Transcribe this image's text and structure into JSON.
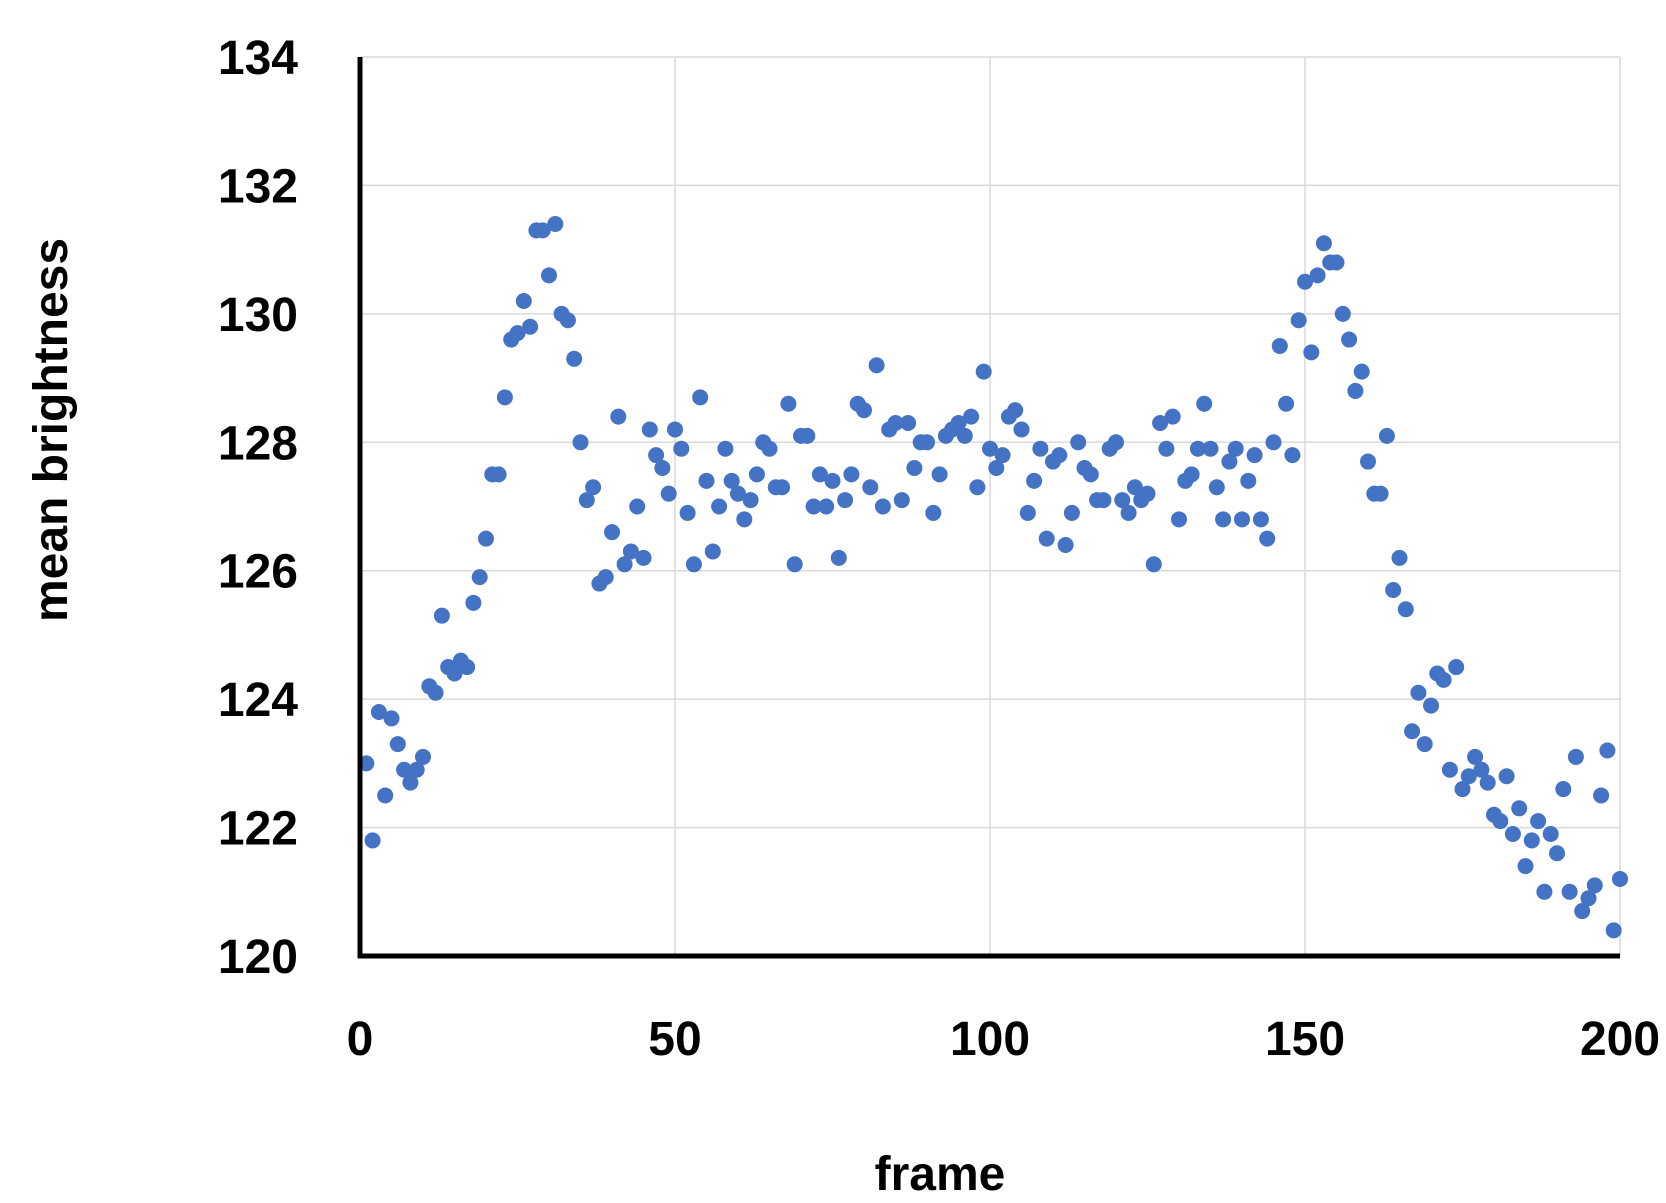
{
  "chart_data": {
    "type": "scatter",
    "title": "",
    "xlabel": "frame",
    "ylabel": "mean brightness",
    "xlim": [
      0,
      200
    ],
    "ylim": [
      120,
      134
    ],
    "x_ticks": [
      0,
      50,
      100,
      150,
      200
    ],
    "y_ticks": [
      120,
      122,
      124,
      126,
      128,
      130,
      132,
      134
    ],
    "grid": true,
    "legend": "none",
    "marker_color": "#4472C4",
    "series": [
      {
        "points": [
          [
            1,
            123.0
          ],
          [
            2,
            121.8
          ],
          [
            3,
            123.8
          ],
          [
            4,
            122.5
          ],
          [
            5,
            123.7
          ],
          [
            6,
            123.3
          ],
          [
            7,
            122.9
          ],
          [
            8,
            122.7
          ],
          [
            9,
            122.9
          ],
          [
            10,
            123.1
          ],
          [
            11,
            124.2
          ],
          [
            12,
            124.1
          ],
          [
            13,
            125.3
          ],
          [
            14,
            124.5
          ],
          [
            15,
            124.4
          ],
          [
            16,
            124.6
          ],
          [
            17,
            124.5
          ],
          [
            18,
            125.5
          ],
          [
            19,
            125.9
          ],
          [
            20,
            126.5
          ],
          [
            21,
            127.5
          ],
          [
            22,
            127.5
          ],
          [
            23,
            128.7
          ],
          [
            24,
            129.6
          ],
          [
            25,
            129.7
          ],
          [
            26,
            130.2
          ],
          [
            27,
            129.8
          ],
          [
            28,
            131.3
          ],
          [
            29,
            131.3
          ],
          [
            30,
            130.6
          ],
          [
            31,
            131.4
          ],
          [
            32,
            130.0
          ],
          [
            33,
            129.9
          ],
          [
            34,
            129.3
          ],
          [
            35,
            128.0
          ],
          [
            36,
            127.1
          ],
          [
            37,
            127.3
          ],
          [
            38,
            125.8
          ],
          [
            39,
            125.9
          ],
          [
            40,
            126.6
          ],
          [
            41,
            128.4
          ],
          [
            42,
            126.1
          ],
          [
            43,
            126.3
          ],
          [
            44,
            127.0
          ],
          [
            45,
            126.2
          ],
          [
            46,
            128.2
          ],
          [
            47,
            127.8
          ],
          [
            48,
            127.6
          ],
          [
            49,
            127.2
          ],
          [
            50,
            128.2
          ],
          [
            51,
            127.9
          ],
          [
            52,
            126.9
          ],
          [
            53,
            126.1
          ],
          [
            54,
            128.7
          ],
          [
            55,
            127.4
          ],
          [
            56,
            126.3
          ],
          [
            57,
            127.0
          ],
          [
            58,
            127.9
          ],
          [
            59,
            127.4
          ],
          [
            60,
            127.2
          ],
          [
            61,
            126.8
          ],
          [
            62,
            127.1
          ],
          [
            63,
            127.5
          ],
          [
            64,
            128.0
          ],
          [
            65,
            127.9
          ],
          [
            66,
            127.3
          ],
          [
            67,
            127.3
          ],
          [
            68,
            128.6
          ],
          [
            69,
            126.1
          ],
          [
            70,
            128.1
          ],
          [
            71,
            128.1
          ],
          [
            72,
            127.0
          ],
          [
            73,
            127.5
          ],
          [
            74,
            127.0
          ],
          [
            75,
            127.4
          ],
          [
            76,
            126.2
          ],
          [
            77,
            127.1
          ],
          [
            78,
            127.5
          ],
          [
            79,
            128.6
          ],
          [
            80,
            128.5
          ],
          [
            81,
            127.3
          ],
          [
            82,
            129.2
          ],
          [
            83,
            127.0
          ],
          [
            84,
            128.2
          ],
          [
            85,
            128.3
          ],
          [
            86,
            127.1
          ],
          [
            87,
            128.3
          ],
          [
            88,
            127.6
          ],
          [
            89,
            128.0
          ],
          [
            90,
            128.0
          ],
          [
            91,
            126.9
          ],
          [
            92,
            127.5
          ],
          [
            93,
            128.1
          ],
          [
            94,
            128.2
          ],
          [
            95,
            128.3
          ],
          [
            96,
            128.1
          ],
          [
            97,
            128.4
          ],
          [
            98,
            127.3
          ],
          [
            99,
            129.1
          ],
          [
            100,
            127.9
          ],
          [
            101,
            127.6
          ],
          [
            102,
            127.8
          ],
          [
            103,
            128.4
          ],
          [
            104,
            128.5
          ],
          [
            105,
            128.2
          ],
          [
            106,
            126.9
          ],
          [
            107,
            127.4
          ],
          [
            108,
            127.9
          ],
          [
            109,
            126.5
          ],
          [
            110,
            127.7
          ],
          [
            111,
            127.8
          ],
          [
            112,
            126.4
          ],
          [
            113,
            126.9
          ],
          [
            114,
            128.0
          ],
          [
            115,
            127.6
          ],
          [
            116,
            127.5
          ],
          [
            117,
            127.1
          ],
          [
            118,
            127.1
          ],
          [
            119,
            127.9
          ],
          [
            120,
            128.0
          ],
          [
            121,
            127.1
          ],
          [
            122,
            126.9
          ],
          [
            123,
            127.3
          ],
          [
            124,
            127.1
          ],
          [
            125,
            127.2
          ],
          [
            126,
            126.1
          ],
          [
            127,
            128.3
          ],
          [
            128,
            127.9
          ],
          [
            129,
            128.4
          ],
          [
            130,
            126.8
          ],
          [
            131,
            127.4
          ],
          [
            132,
            127.5
          ],
          [
            133,
            127.9
          ],
          [
            134,
            128.6
          ],
          [
            135,
            127.9
          ],
          [
            136,
            127.3
          ],
          [
            137,
            126.8
          ],
          [
            138,
            127.7
          ],
          [
            139,
            127.9
          ],
          [
            140,
            126.8
          ],
          [
            141,
            127.4
          ],
          [
            142,
            127.8
          ],
          [
            143,
            126.8
          ],
          [
            144,
            126.5
          ],
          [
            145,
            128.0
          ],
          [
            146,
            129.5
          ],
          [
            147,
            128.6
          ],
          [
            148,
            127.8
          ],
          [
            149,
            129.9
          ],
          [
            150,
            130.5
          ],
          [
            151,
            129.4
          ],
          [
            152,
            130.6
          ],
          [
            153,
            131.1
          ],
          [
            154,
            130.8
          ],
          [
            155,
            130.8
          ],
          [
            156,
            130.0
          ],
          [
            157,
            129.6
          ],
          [
            158,
            128.8
          ],
          [
            159,
            129.1
          ],
          [
            160,
            127.7
          ],
          [
            161,
            127.2
          ],
          [
            162,
            127.2
          ],
          [
            163,
            128.1
          ],
          [
            164,
            125.7
          ],
          [
            165,
            126.2
          ],
          [
            166,
            125.4
          ],
          [
            167,
            123.5
          ],
          [
            168,
            124.1
          ],
          [
            169,
            123.3
          ],
          [
            170,
            123.9
          ],
          [
            171,
            124.4
          ],
          [
            172,
            124.3
          ],
          [
            173,
            122.9
          ],
          [
            174,
            124.5
          ],
          [
            175,
            122.6
          ],
          [
            176,
            122.8
          ],
          [
            177,
            123.1
          ],
          [
            178,
            122.9
          ],
          [
            179,
            122.7
          ],
          [
            180,
            122.2
          ],
          [
            181,
            122.1
          ],
          [
            182,
            122.8
          ],
          [
            183,
            121.9
          ],
          [
            184,
            122.3
          ],
          [
            185,
            121.4
          ],
          [
            186,
            121.8
          ],
          [
            187,
            122.1
          ],
          [
            188,
            121.0
          ],
          [
            189,
            121.9
          ],
          [
            190,
            121.6
          ],
          [
            191,
            122.6
          ],
          [
            192,
            121.0
          ],
          [
            193,
            123.1
          ],
          [
            194,
            120.7
          ],
          [
            195,
            120.9
          ],
          [
            196,
            121.1
          ],
          [
            197,
            122.5
          ],
          [
            198,
            123.2
          ],
          [
            199,
            120.4
          ],
          [
            200,
            121.2
          ]
        ]
      }
    ]
  }
}
